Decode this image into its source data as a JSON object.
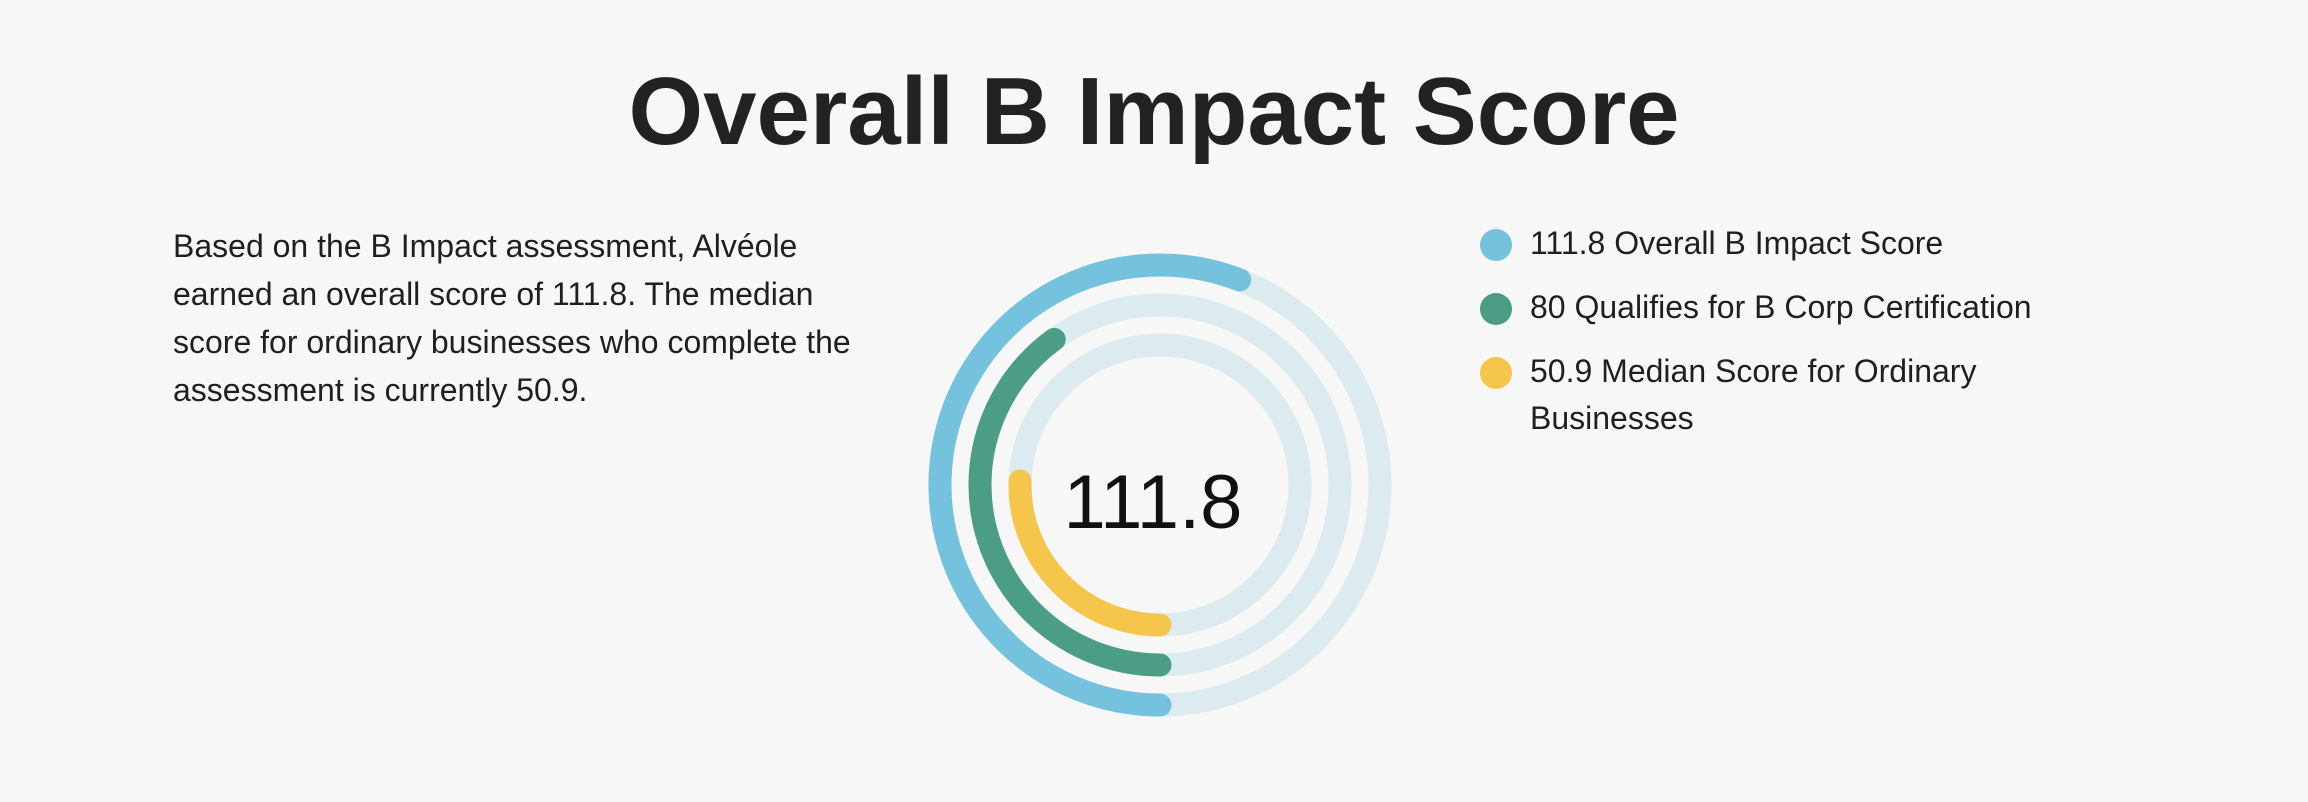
{
  "header": {
    "title": "Overall B Impact Score"
  },
  "description": {
    "text": "Based on the B Impact assessment, Alvéole earned an overall score of 111.8. The median score for ordinary businesses who complete the assessment is currently 50.9."
  },
  "chart_data": {
    "type": "radial-bar",
    "center_label": "111.8",
    "max_value": 200,
    "track_color": "#dcebef",
    "series": [
      {
        "name": "Overall B Impact Score",
        "value": 111.8,
        "color": "#74c2dd"
      },
      {
        "name": "Qualifies for B Corp Certification",
        "value": 80,
        "color": "#4b9d88"
      },
      {
        "name": "Median Score for Ordinary Businesses",
        "value": 50.9,
        "color": "#f5c64b"
      }
    ]
  },
  "legend": {
    "items": [
      {
        "label": "111.8 Overall B Impact Score",
        "color": "#74c2dd"
      },
      {
        "label": "80 Qualifies for B Corp Certification",
        "color": "#4b9d88"
      },
      {
        "label": "50.9 Median Score for Ordinary Businesses",
        "color": "#f5c64b"
      }
    ]
  }
}
